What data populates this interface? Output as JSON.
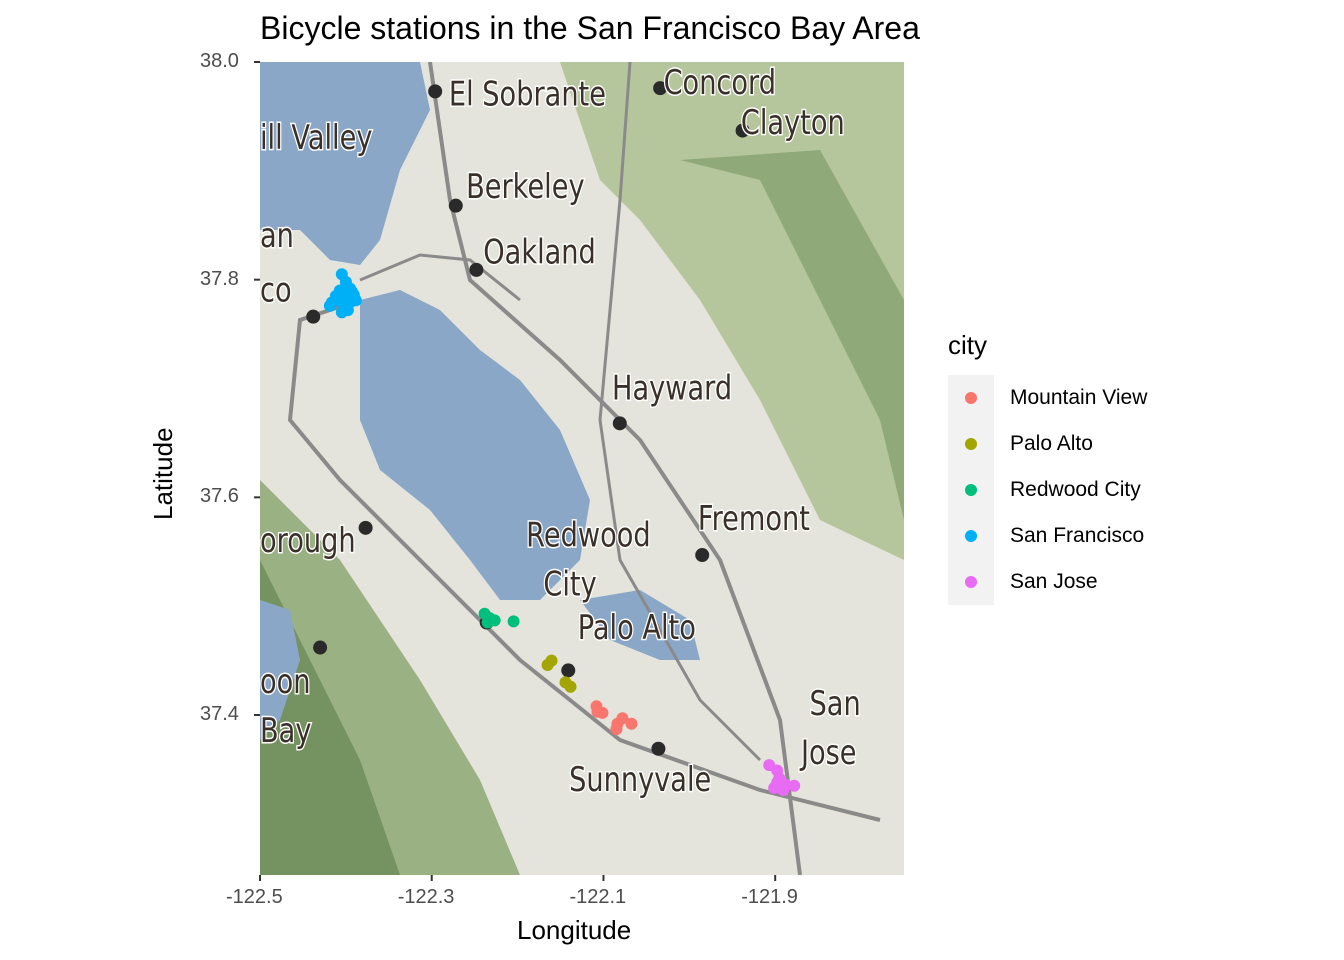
{
  "chart_data": {
    "type": "scatter",
    "title": "Bicycle stations in the San Francisco Bay Area",
    "xlabel": "Longitude",
    "ylabel": "Latitude",
    "xlim": [
      -122.5,
      -121.75
    ],
    "ylim": [
      37.253,
      38.0
    ],
    "x_ticks": [
      "-122.5",
      "-122.3",
      "-122.1",
      "-121.9"
    ],
    "y_ticks": [
      "38.0",
      "37.8",
      "37.6",
      "37.4"
    ],
    "x_tick_values": [
      -122.5,
      -122.3,
      -122.1,
      -121.9
    ],
    "y_tick_values": [
      38.0,
      37.8,
      37.6,
      37.4
    ],
    "grid": false,
    "legend_title": "city",
    "legend_position": "right",
    "background": "map tiles (terrain)",
    "series": [
      {
        "name": "Mountain View",
        "color": "#F8766D",
        "points": [
          [
            -122.1081,
            37.408
          ],
          [
            -122.1012,
            37.402
          ],
          [
            -122.107,
            37.403
          ],
          [
            -122.0837,
            37.392
          ],
          [
            -122.0779,
            37.397
          ],
          [
            -122.0674,
            37.392
          ],
          [
            -122.0849,
            37.387
          ]
        ]
      },
      {
        "name": "Palo Alto",
        "color": "#A3A500",
        "points": [
          [
            -122.1651,
            37.446
          ],
          [
            -122.1605,
            37.45
          ],
          [
            -122.1442,
            37.43
          ],
          [
            -122.1384,
            37.426
          ]
        ]
      },
      {
        "name": "Redwood City",
        "color": "#00BF7D",
        "points": [
          [
            -122.2384,
            37.493
          ],
          [
            -122.2326,
            37.489
          ],
          [
            -122.2267,
            37.487
          ],
          [
            -122.2349,
            37.485
          ],
          [
            -122.2047,
            37.486
          ]
        ]
      },
      {
        "name": "San Francisco",
        "color": "#00B0F6",
        "points": [
          [
            -122.4047,
            37.805
          ],
          [
            -122.4,
            37.798
          ],
          [
            -122.3953,
            37.792
          ],
          [
            -122.3907,
            37.786
          ],
          [
            -122.3884,
            37.781
          ],
          [
            -122.3953,
            37.779
          ],
          [
            -122.4023,
            37.778
          ],
          [
            -122.4093,
            37.781
          ],
          [
            -122.4163,
            37.779
          ],
          [
            -122.4186,
            37.776
          ],
          [
            -122.4116,
            37.785
          ],
          [
            -122.407,
            37.79
          ],
          [
            -122.4023,
            37.785
          ],
          [
            -122.3977,
            37.772
          ],
          [
            -122.4047,
            37.77
          ],
          [
            -122.393,
            37.789
          ]
        ]
      },
      {
        "name": "San Jose",
        "color": "#E76BF3",
        "points": [
          [
            -121.907,
            37.354
          ],
          [
            -121.8977,
            37.349
          ],
          [
            -121.8953,
            37.342
          ],
          [
            -121.9012,
            37.333
          ],
          [
            -121.8884,
            37.336
          ],
          [
            -121.8779,
            37.335
          ],
          [
            -121.8907,
            37.331
          ],
          [
            -121.8977,
            37.338
          ]
        ]
      }
    ]
  },
  "map_labels": [
    {
      "text": "El Sobrante",
      "lon": -122.28,
      "lat": 37.96
    },
    {
      "text": "Berkeley",
      "lon": -122.26,
      "lat": 37.875
    },
    {
      "text": "Oakland",
      "lon": -122.24,
      "lat": 37.815
    },
    {
      "text": "Concord",
      "lon": -122.03,
      "lat": 38.0
    },
    {
      "text": "Clayton",
      "lon": -121.94,
      "lat": 37.965
    },
    {
      "text": "ill Valley",
      "lon": -122.5,
      "lat": 37.92
    },
    {
      "text": "an",
      "lon": -122.5,
      "lat": 37.83
    },
    {
      "text": "co",
      "lon": -122.5,
      "lat": 37.78
    },
    {
      "text": "Hayward",
      "lon": -122.09,
      "lat": 37.69
    },
    {
      "text": "Fremont",
      "lon": -121.99,
      "lat": 37.57
    },
    {
      "text": "Redwood",
      "lon": -122.19,
      "lat": 37.555
    },
    {
      "text": "City",
      "lon": -122.17,
      "lat": 37.51
    },
    {
      "text": "Palo Alto",
      "lon": -122.13,
      "lat": 37.47
    },
    {
      "text": "orough",
      "lon": -122.5,
      "lat": 37.55
    },
    {
      "text": "oon",
      "lon": -122.5,
      "lat": 37.42
    },
    {
      "text": "Bay",
      "lon": -122.5,
      "lat": 37.375
    },
    {
      "text": "San",
      "lon": -121.86,
      "lat": 37.4
    },
    {
      "text": "Jose",
      "lon": -121.87,
      "lat": 37.355
    },
    {
      "text": "Sunnyvale",
      "lon": -122.14,
      "lat": 37.33
    }
  ],
  "map_dots": [
    [
      -122.296,
      37.973
    ],
    [
      -122.034,
      37.976
    ],
    [
      -121.938,
      37.937
    ],
    [
      -122.272,
      37.868
    ],
    [
      -122.248,
      37.809
    ],
    [
      -122.438,
      37.766
    ],
    [
      -122.081,
      37.668
    ],
    [
      -121.985,
      37.547
    ],
    [
      -122.377,
      37.572
    ],
    [
      -122.236,
      37.485
    ],
    [
      -122.141,
      37.441
    ],
    [
      -122.036,
      37.369
    ],
    [
      -122.43,
      37.462
    ]
  ]
}
